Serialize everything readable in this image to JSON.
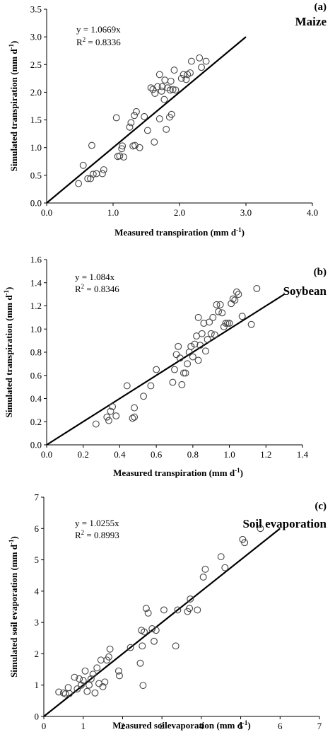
{
  "chart_data": [
    {
      "type": "scatter",
      "panel_tag": "(a)",
      "crop_label": "Maize",
      "equation": "y = 1.0669x",
      "r2_text": "R",
      "r2_value": " = 0.8336",
      "xlabel": "Measured transpiration (mm d",
      "ylabel": "Simulated transpiration (mm d",
      "unit_exp": "-1",
      "unit_close": ")",
      "xlim": [
        0,
        4
      ],
      "ylim": [
        0,
        3.5
      ],
      "xticks": [
        "0.0",
        "1.0",
        "2.0",
        "3.0",
        "4.0"
      ],
      "xtick_values": [
        0,
        1,
        2,
        3,
        4
      ],
      "yticks": [
        "0.0",
        "0.5",
        "1.0",
        "1.5",
        "2.0",
        "2.5",
        "3.0",
        "3.5"
      ],
      "ytick_values": [
        0,
        0.5,
        1,
        1.5,
        2,
        2.5,
        3,
        3.5
      ],
      "fit_line": [
        [
          0,
          0
        ],
        [
          3.0,
          3.0
        ]
      ],
      "points": [
        [
          0.48,
          0.35
        ],
        [
          0.55,
          0.68
        ],
        [
          0.62,
          0.44
        ],
        [
          0.66,
          0.44
        ],
        [
          0.68,
          1.04
        ],
        [
          0.7,
          0.52
        ],
        [
          0.75,
          0.53
        ],
        [
          0.84,
          0.53
        ],
        [
          0.86,
          0.6
        ],
        [
          1.05,
          1.54
        ],
        [
          1.07,
          0.84
        ],
        [
          1.1,
          0.85
        ],
        [
          1.13,
          0.98
        ],
        [
          1.14,
          1.03
        ],
        [
          1.16,
          0.83
        ],
        [
          1.25,
          1.37
        ],
        [
          1.27,
          1.45
        ],
        [
          1.3,
          1.03
        ],
        [
          1.32,
          1.58
        ],
        [
          1.33,
          1.04
        ],
        [
          1.35,
          1.65
        ],
        [
          1.4,
          1.0
        ],
        [
          1.47,
          1.56
        ],
        [
          1.52,
          1.31
        ],
        [
          1.57,
          2.08
        ],
        [
          1.6,
          2.05
        ],
        [
          1.62,
          1.1
        ],
        [
          1.63,
          1.98
        ],
        [
          1.67,
          2.1
        ],
        [
          1.7,
          1.52
        ],
        [
          1.7,
          2.32
        ],
        [
          1.73,
          2.02
        ],
        [
          1.74,
          2.1
        ],
        [
          1.77,
          1.87
        ],
        [
          1.78,
          2.22
        ],
        [
          1.8,
          1.33
        ],
        [
          1.82,
          2.08
        ],
        [
          1.85,
          1.55
        ],
        [
          1.86,
          2.04
        ],
        [
          1.87,
          2.2
        ],
        [
          1.88,
          1.6
        ],
        [
          1.9,
          2.05
        ],
        [
          1.92,
          2.4
        ],
        [
          1.94,
          2.04
        ],
        [
          2.03,
          2.25
        ],
        [
          2.06,
          2.32
        ],
        [
          2.1,
          2.23
        ],
        [
          2.12,
          2.32
        ],
        [
          2.16,
          2.35
        ],
        [
          2.18,
          2.56
        ],
        [
          2.3,
          2.62
        ],
        [
          2.33,
          2.45
        ],
        [
          2.4,
          2.56
        ]
      ]
    },
    {
      "type": "scatter",
      "panel_tag": "(b)",
      "crop_label": "Soybean",
      "equation": "y = 1.084x",
      "r2_text": "R",
      "r2_value": " = 0.8346",
      "xlabel": "Measured transpiration (mm d",
      "ylabel": "Simulated transpiration (mm d",
      "unit_exp": "-1",
      "unit_close": ")",
      "xlim": [
        0,
        1.4
      ],
      "ylim": [
        0,
        1.6
      ],
      "xticks": [
        "0.0",
        "0.2",
        "0.4",
        "0.6",
        "0.8",
        "1.0",
        "1.2",
        "1.4"
      ],
      "xtick_values": [
        0,
        0.2,
        0.4,
        0.6,
        0.8,
        1.0,
        1.2,
        1.4
      ],
      "yticks": [
        "0.0",
        "0.2",
        "0.4",
        "0.6",
        "0.8",
        "1.0",
        "1.2",
        "1.4",
        "1.6"
      ],
      "ytick_values": [
        0,
        0.2,
        0.4,
        0.6,
        0.8,
        1.0,
        1.2,
        1.4,
        1.6
      ],
      "fit_line": [
        [
          0,
          0
        ],
        [
          1.3,
          1.3
        ]
      ],
      "points": [
        [
          0.27,
          0.18
        ],
        [
          0.33,
          0.24
        ],
        [
          0.34,
          0.21
        ],
        [
          0.35,
          0.29
        ],
        [
          0.36,
          0.33
        ],
        [
          0.38,
          0.25
        ],
        [
          0.44,
          0.51
        ],
        [
          0.47,
          0.23
        ],
        [
          0.48,
          0.32
        ],
        [
          0.48,
          0.24
        ],
        [
          0.53,
          0.42
        ],
        [
          0.57,
          0.51
        ],
        [
          0.6,
          0.65
        ],
        [
          0.69,
          0.54
        ],
        [
          0.7,
          0.65
        ],
        [
          0.71,
          0.78
        ],
        [
          0.72,
          0.85
        ],
        [
          0.73,
          0.75
        ],
        [
          0.74,
          0.52
        ],
        [
          0.75,
          0.62
        ],
        [
          0.76,
          0.62
        ],
        [
          0.77,
          0.7
        ],
        [
          0.78,
          0.8
        ],
        [
          0.79,
          0.85
        ],
        [
          0.8,
          0.76
        ],
        [
          0.81,
          0.87
        ],
        [
          0.82,
          0.94
        ],
        [
          0.83,
          1.1
        ],
        [
          0.83,
          0.73
        ],
        [
          0.84,
          0.86
        ],
        [
          0.85,
          0.96
        ],
        [
          0.86,
          1.05
        ],
        [
          0.87,
          0.81
        ],
        [
          0.88,
          0.91
        ],
        [
          0.89,
          1.06
        ],
        [
          0.9,
          0.96
        ],
        [
          0.91,
          1.1
        ],
        [
          0.92,
          0.95
        ],
        [
          0.93,
          1.21
        ],
        [
          0.94,
          1.15
        ],
        [
          0.95,
          1.21
        ],
        [
          0.96,
          1.14
        ],
        [
          0.97,
          1.02
        ],
        [
          0.98,
          1.05
        ],
        [
          0.99,
          1.05
        ],
        [
          1.0,
          1.05
        ],
        [
          1.01,
          1.22
        ],
        [
          1.02,
          1.26
        ],
        [
          1.03,
          1.25
        ],
        [
          1.04,
          1.32
        ],
        [
          1.05,
          1.3
        ],
        [
          1.07,
          1.11
        ],
        [
          1.12,
          1.04
        ],
        [
          1.15,
          1.35
        ]
      ]
    },
    {
      "type": "scatter",
      "panel_tag": "(c)",
      "crop_label": "Soil evaporation",
      "equation": "y = 1.0255x",
      "r2_text": "R",
      "r2_value": " = 0.8993",
      "xlabel": "Measured soilevaporation (mm d",
      "ylabel": "Simulated soil evaporation (mm d",
      "unit_exp": "-1",
      "unit_close": ")",
      "xlim": [
        0,
        7
      ],
      "ylim": [
        0,
        7
      ],
      "xticks": [
        "0",
        "1",
        "2",
        "3",
        "4",
        "5",
        "6",
        "7"
      ],
      "xtick_values": [
        0,
        1,
        2,
        3,
        4,
        5,
        6,
        7
      ],
      "yticks": [
        "0",
        "1",
        "2",
        "3",
        "4",
        "5",
        "6",
        "7"
      ],
      "ytick_values": [
        0,
        1,
        2,
        3,
        4,
        5,
        6,
        7
      ],
      "fit_line": [
        [
          0,
          0
        ],
        [
          6.0,
          6.0
        ]
      ],
      "points": [
        [
          0.38,
          0.78
        ],
        [
          0.5,
          0.75
        ],
        [
          0.55,
          0.72
        ],
        [
          0.62,
          0.92
        ],
        [
          0.65,
          0.73
        ],
        [
          0.78,
          1.25
        ],
        [
          0.85,
          0.88
        ],
        [
          0.9,
          1.2
        ],
        [
          0.95,
          1.0
        ],
        [
          1.0,
          1.15
        ],
        [
          1.05,
          1.45
        ],
        [
          1.1,
          0.8
        ],
        [
          1.15,
          1.0
        ],
        [
          1.2,
          1.2
        ],
        [
          1.25,
          1.35
        ],
        [
          1.3,
          0.75
        ],
        [
          1.35,
          1.55
        ],
        [
          1.4,
          1.05
        ],
        [
          1.45,
          1.8
        ],
        [
          1.5,
          0.95
        ],
        [
          1.55,
          1.1
        ],
        [
          1.6,
          1.8
        ],
        [
          1.65,
          1.9
        ],
        [
          1.68,
          2.15
        ],
        [
          1.9,
          1.45
        ],
        [
          1.92,
          1.3
        ],
        [
          2.2,
          2.2
        ],
        [
          2.45,
          1.7
        ],
        [
          2.48,
          2.75
        ],
        [
          2.5,
          2.25
        ],
        [
          2.52,
          0.99
        ],
        [
          2.55,
          2.7
        ],
        [
          2.6,
          3.45
        ],
        [
          2.65,
          3.3
        ],
        [
          2.75,
          2.8
        ],
        [
          2.8,
          2.4
        ],
        [
          2.85,
          2.75
        ],
        [
          3.05,
          3.4
        ],
        [
          3.35,
          2.25
        ],
        [
          3.4,
          3.4
        ],
        [
          3.65,
          3.35
        ],
        [
          3.7,
          3.45
        ],
        [
          3.72,
          3.75
        ],
        [
          3.9,
          3.4
        ],
        [
          4.05,
          4.45
        ],
        [
          4.1,
          4.7
        ],
        [
          4.5,
          5.1
        ],
        [
          4.6,
          4.75
        ],
        [
          5.05,
          5.65
        ],
        [
          5.1,
          5.55
        ],
        [
          5.5,
          6.0
        ]
      ]
    }
  ]
}
